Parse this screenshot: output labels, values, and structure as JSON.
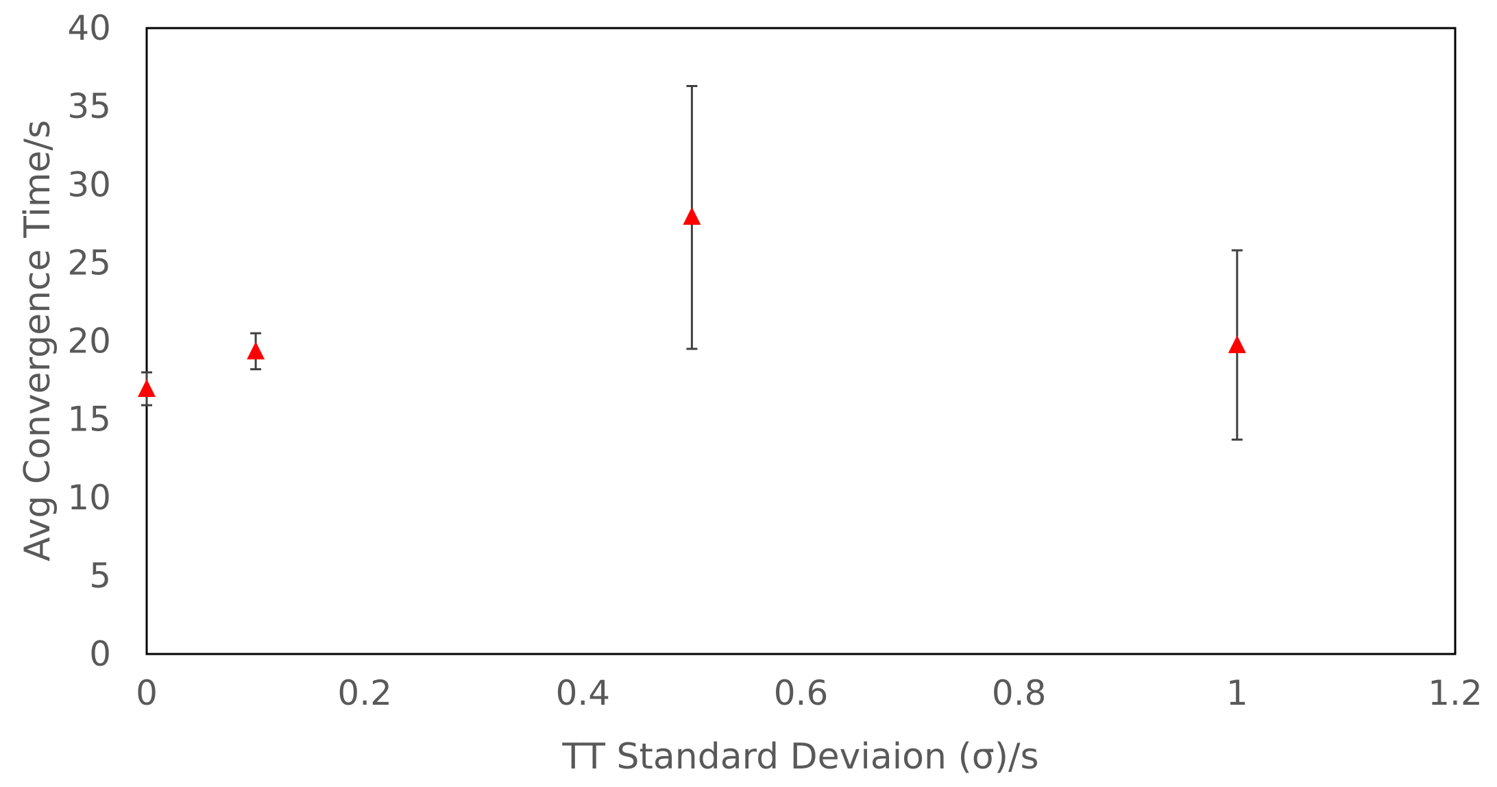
{
  "chart_data": {
    "type": "scatter",
    "title": "",
    "xlabel": "TT Standard Deviaion (σ)/s",
    "ylabel": "Avg Convergence Time/s",
    "xlim": [
      0,
      1.2
    ],
    "ylim": [
      0,
      40
    ],
    "x_ticks": [
      0,
      0.2,
      0.4,
      0.6,
      0.8,
      1,
      1.2
    ],
    "x_tick_labels": [
      "0",
      "0.2",
      "0.4",
      "0.6",
      "0.8",
      "1",
      "1.2"
    ],
    "y_ticks": [
      0,
      5,
      10,
      15,
      20,
      25,
      30,
      35,
      40
    ],
    "y_tick_labels": [
      "0",
      "5",
      "10",
      "15",
      "20",
      "25",
      "30",
      "35",
      "40"
    ],
    "grid": false,
    "legend": "none",
    "marker": "triangle",
    "marker_color": "#ff0000",
    "errorbar_color": "#404040",
    "points": [
      {
        "x": 0,
        "y": 17.0,
        "y_low": 15.9,
        "y_high": 18.0
      },
      {
        "x": 0.1,
        "y": 19.4,
        "y_low": 18.2,
        "y_high": 20.5
      },
      {
        "x": 0.5,
        "y": 28.0,
        "y_low": 19.5,
        "y_high": 36.3
      },
      {
        "x": 1,
        "y": 19.8,
        "y_low": 13.7,
        "y_high": 25.8
      }
    ]
  }
}
